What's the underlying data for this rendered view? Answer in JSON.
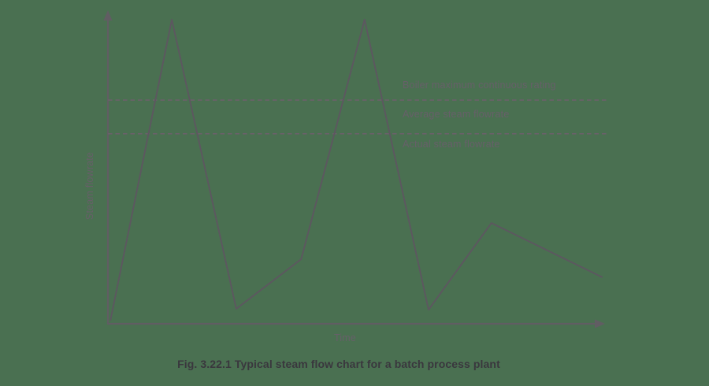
{
  "figure": {
    "caption": "Fig. 3.22.1 Typical steam flow chart for a batch process plant"
  },
  "colors": {
    "background": "#4a7051",
    "axis": "#615d63",
    "curve": "#5d5760",
    "dashed": "#6a616a",
    "label_text": "#675f69",
    "caption_text": "#3a373e"
  },
  "chart_data": {
    "type": "line",
    "title": "",
    "xlabel": "Time",
    "ylabel": "Steam flowrate",
    "grid": false,
    "legend_position": "inline-right-annotations",
    "x_axis": {
      "ticks": [],
      "range_pct": [
        0,
        100
      ],
      "arrow": true
    },
    "y_axis": {
      "ticks": [],
      "range_pct": [
        0,
        100
      ],
      "arrow": true
    },
    "series": [
      {
        "name": "Actual steam flowrate",
        "style": "solid",
        "points": [
          [
            0.5,
            1.0
          ],
          [
            12.9,
            97.5
          ],
          [
            25.9,
            4.8
          ],
          [
            39.0,
            20.7
          ],
          [
            51.8,
            97.5
          ],
          [
            64.7,
            4.5
          ],
          [
            77.4,
            32.3
          ],
          [
            99.8,
            14.9
          ]
        ]
      }
    ],
    "reference_lines": [
      {
        "name": "Boiler maximum continuous rating",
        "style": "dashed",
        "value_pct": 71.7
      },
      {
        "name": "Average steam flowrate",
        "style": "dashed",
        "value_pct": 60.9
      }
    ]
  }
}
